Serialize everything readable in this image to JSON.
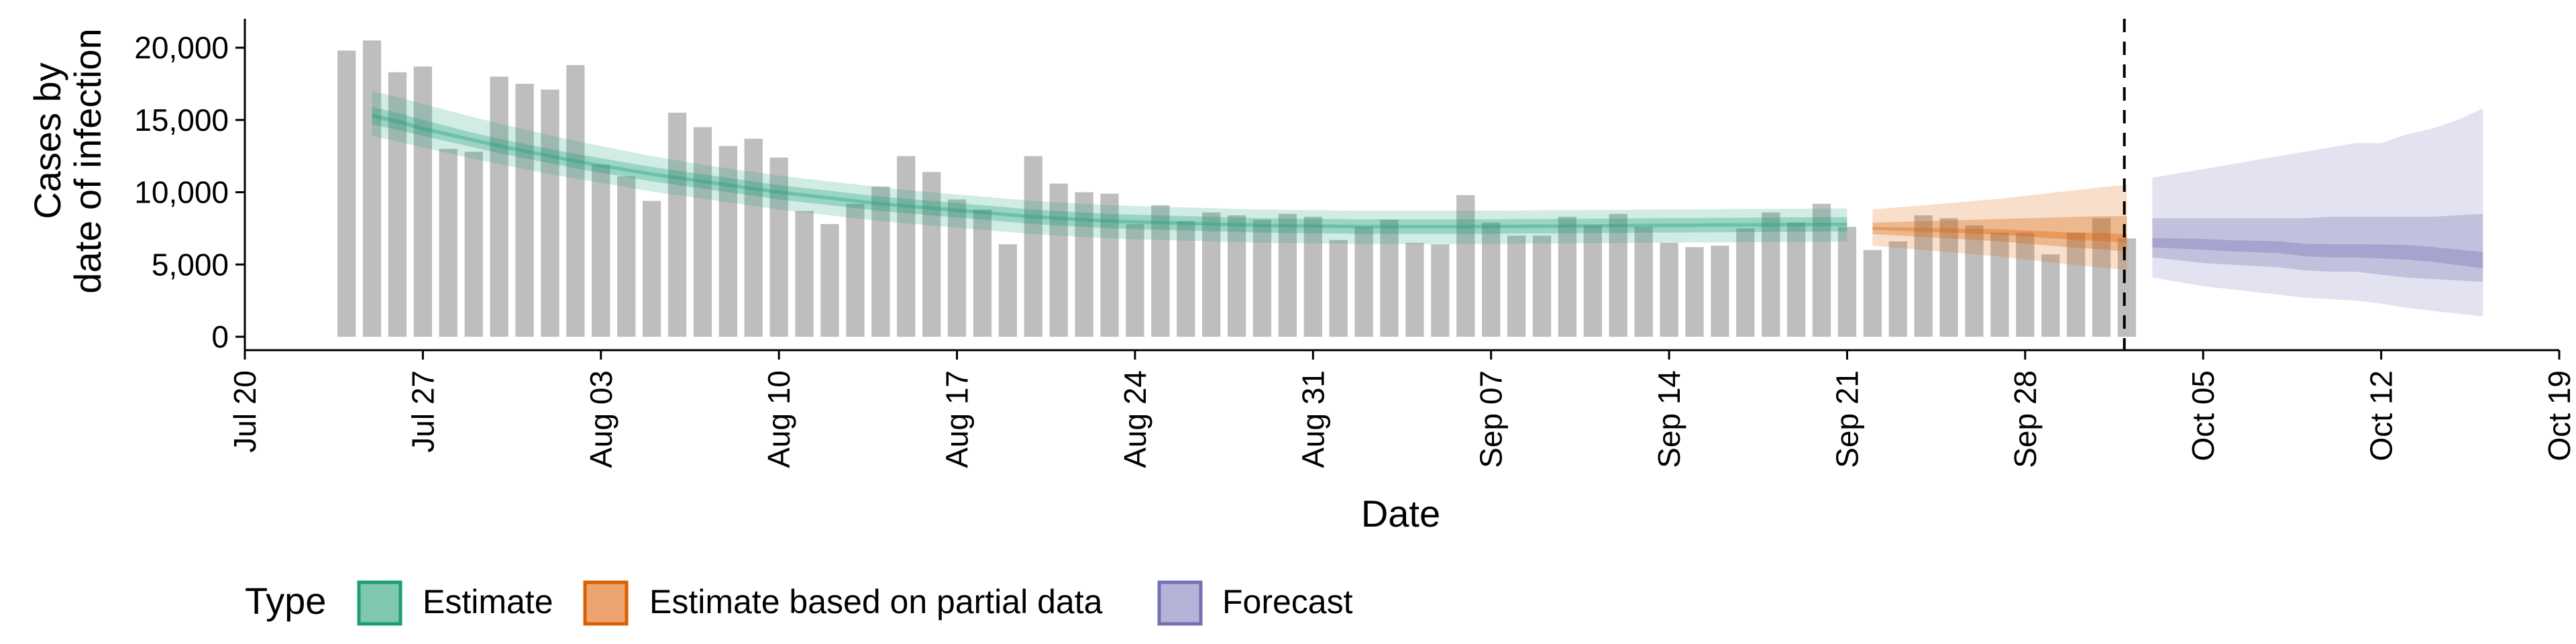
{
  "chart_data": {
    "type": "bar",
    "xlabel": "Date",
    "ylabel_lines": [
      "Cases by",
      "date of infection"
    ],
    "ylim": [
      0,
      22000
    ],
    "xlim": [
      "2020-07-20",
      "2020-10-19"
    ],
    "x_ticks": [
      {
        "date": "2020-07-20",
        "label": "Jul 20"
      },
      {
        "date": "2020-07-27",
        "label": "Jul 27"
      },
      {
        "date": "2020-08-03",
        "label": "Aug 03"
      },
      {
        "date": "2020-08-10",
        "label": "Aug 10"
      },
      {
        "date": "2020-08-17",
        "label": "Aug 17"
      },
      {
        "date": "2020-08-24",
        "label": "Aug 24"
      },
      {
        "date": "2020-08-31",
        "label": "Aug 31"
      },
      {
        "date": "2020-09-07",
        "label": "Sep 07"
      },
      {
        "date": "2020-09-14",
        "label": "Sep 14"
      },
      {
        "date": "2020-09-21",
        "label": "Sep 21"
      },
      {
        "date": "2020-09-28",
        "label": "Sep 28"
      },
      {
        "date": "2020-10-05",
        "label": "Oct 05"
      },
      {
        "date": "2020-10-12",
        "label": "Oct 12"
      },
      {
        "date": "2020-10-19",
        "label": "Oct 19"
      }
    ],
    "y_ticks": [
      {
        "value": 0,
        "label": "0"
      },
      {
        "value": 5000,
        "label": "5,000"
      },
      {
        "value": 10000,
        "label": "10,000"
      },
      {
        "value": 15000,
        "label": "15,000"
      },
      {
        "value": 20000,
        "label": "20,000"
      }
    ],
    "forecast_start_marker": "2020-10-02",
    "bars": {
      "start_date": "2020-07-24",
      "end_date": "2020-10-02",
      "values": [
        19800,
        20500,
        18300,
        18700,
        13000,
        12800,
        18000,
        17500,
        17100,
        18800,
        11900,
        11100,
        9400,
        15500,
        14500,
        13200,
        13700,
        12400,
        8700,
        7800,
        9200,
        10400,
        12500,
        11400,
        9500,
        8800,
        6400,
        12500,
        10600,
        10000,
        9900,
        7800,
        9100,
        8000,
        8600,
        8400,
        8100,
        8500,
        8300,
        6700,
        7600,
        8100,
        6500,
        6400,
        9800,
        7900,
        7000,
        7000,
        8300,
        7700,
        8500,
        7600,
        6500,
        6200,
        6300,
        7500,
        8600,
        7900,
        9200,
        7600,
        6000,
        6600,
        8400,
        8200,
        7700,
        7200,
        7200,
        5700,
        7200,
        8200,
        6800
      ]
    },
    "legend": {
      "title": "Type",
      "position": "bottom",
      "entries": [
        {
          "label": "Estimate",
          "fill": "#7fc7ad",
          "stroke": "#1b9e77"
        },
        {
          "label": "Estimate based on partial data",
          "fill": "#eda470",
          "stroke": "#d95f02"
        },
        {
          "label": "Forecast",
          "fill": "#b5b2d8",
          "stroke": "#7570b3"
        }
      ]
    },
    "colors": {
      "bar": "#bebebe",
      "estimate": "#1b9e77",
      "partial": "#d95f02",
      "forecast": "#7570b3"
    },
    "series": [
      {
        "type": "estimate",
        "start_date": "2020-07-25",
        "end_date": "2020-09-21",
        "median": [
          15300,
          14900,
          14400,
          14000,
          13600,
          13200,
          12850,
          12500,
          12150,
          11850,
          11550,
          11250,
          11000,
          10750,
          10500,
          10250,
          10000,
          9800,
          9600,
          9400,
          9200,
          9050,
          8900,
          8750,
          8600,
          8450,
          8300,
          8200,
          8100,
          8000,
          7950,
          7900,
          7850,
          7800,
          7750,
          7700,
          7680,
          7660,
          7640,
          7620,
          7620,
          7620,
          7620,
          7620,
          7630,
          7640,
          7650,
          7660,
          7670,
          7680,
          7700,
          7710,
          7720,
          7730,
          7740,
          7750,
          7760,
          7770,
          7780
        ],
        "lower90": [
          13900,
          13500,
          13100,
          12700,
          12300,
          11950,
          11600,
          11250,
          10950,
          10650,
          10350,
          10050,
          9800,
          9550,
          9300,
          9050,
          8800,
          8600,
          8400,
          8200,
          8000,
          7850,
          7700,
          7550,
          7400,
          7250,
          7100,
          7000,
          6900,
          6800,
          6750,
          6700,
          6650,
          6600,
          6550,
          6500,
          6480,
          6460,
          6440,
          6420,
          6420,
          6420,
          6420,
          6420,
          6430,
          6440,
          6450,
          6460,
          6470,
          6480,
          6500,
          6510,
          6520,
          6530,
          6540,
          6550,
          6560,
          6570,
          6580
        ],
        "upper90": [
          17000,
          16600,
          16100,
          15650,
          15200,
          14750,
          14350,
          13950,
          13550,
          13200,
          12850,
          12500,
          12200,
          11900,
          11650,
          11400,
          11150,
          10950,
          10750,
          10550,
          10350,
          10150,
          10000,
          9850,
          9700,
          9550,
          9400,
          9300,
          9200,
          9100,
          9050,
          9000,
          8950,
          8900,
          8850,
          8800,
          8780,
          8760,
          8740,
          8720,
          8720,
          8720,
          8720,
          8720,
          8730,
          8740,
          8750,
          8760,
          8770,
          8780,
          8800,
          8810,
          8820,
          8830,
          8840,
          8850,
          8860,
          8870,
          8880
        ],
        "lower50": [
          14700,
          14300,
          13900,
          13500,
          13100,
          12700,
          12350,
          12000,
          11650,
          11350,
          11050,
          10750,
          10500,
          10250,
          10000,
          9750,
          9500,
          9300,
          9100,
          8900,
          8700,
          8550,
          8400,
          8250,
          8100,
          7950,
          7800,
          7700,
          7600,
          7500,
          7450,
          7400,
          7350,
          7300,
          7250,
          7200,
          7180,
          7160,
          7140,
          7120,
          7120,
          7120,
          7120,
          7120,
          7130,
          7140,
          7150,
          7160,
          7170,
          7180,
          7200,
          7210,
          7220,
          7230,
          7240,
          7250,
          7260,
          7270,
          7280
        ],
        "upper50": [
          15900,
          15500,
          15000,
          14550,
          14100,
          13700,
          13350,
          13000,
          12650,
          12350,
          12050,
          11750,
          11500,
          11250,
          11000,
          10750,
          10500,
          10300,
          10100,
          9900,
          9700,
          9550,
          9400,
          9250,
          9100,
          8950,
          8800,
          8700,
          8600,
          8500,
          8450,
          8400,
          8350,
          8300,
          8250,
          8200,
          8180,
          8160,
          8140,
          8120,
          8120,
          8120,
          8120,
          8120,
          8130,
          8140,
          8150,
          8160,
          8170,
          8180,
          8200,
          8210,
          8220,
          8230,
          8240,
          8250,
          8260,
          8270,
          8280
        ]
      },
      {
        "type": "partial",
        "start_date": "2020-09-22",
        "end_date": "2020-10-02",
        "median": [
          7500,
          7450,
          7400,
          7350,
          7300,
          7250,
          7150,
          7050,
          6950,
          6900,
          6800
        ],
        "lower90": [
          6300,
          6150,
          6000,
          5850,
          5700,
          5550,
          5350,
          5150,
          4950,
          4800,
          4600
        ],
        "upper90": [
          8800,
          8950,
          9100,
          9250,
          9400,
          9550,
          9750,
          9950,
          10150,
          10350,
          10500
        ],
        "lower50": [
          7100,
          7000,
          6900,
          6800,
          6700,
          6600,
          6450,
          6300,
          6150,
          6050,
          5900
        ],
        "upper50": [
          7900,
          7950,
          8000,
          8050,
          8100,
          8150,
          8200,
          8250,
          8300,
          8350,
          8350
        ]
      },
      {
        "type": "forecast",
        "start_date": "2020-10-03",
        "end_date": "2020-10-16",
        "median": [
          6500,
          6450,
          6400,
          6300,
          6250,
          6200,
          6000,
          5950,
          5950,
          5900,
          5850,
          5700,
          5500,
          5300
        ],
        "lower90": [
          4100,
          3800,
          3500,
          3300,
          3100,
          2900,
          2700,
          2600,
          2500,
          2300,
          2000,
          1800,
          1600,
          1400
        ],
        "upper90": [
          11000,
          11300,
          11600,
          11900,
          12200,
          12500,
          12800,
          13100,
          13400,
          13400,
          14000,
          14400,
          15000,
          15800
        ],
        "lower50": [
          5500,
          5300,
          5100,
          5000,
          4900,
          4800,
          4600,
          4500,
          4500,
          4300,
          4100,
          4000,
          3900,
          3800
        ],
        "upper50": [
          8200,
          8200,
          8200,
          8200,
          8200,
          8200,
          8200,
          8300,
          8300,
          8300,
          8300,
          8300,
          8400,
          8500
        ]
      }
    ]
  }
}
